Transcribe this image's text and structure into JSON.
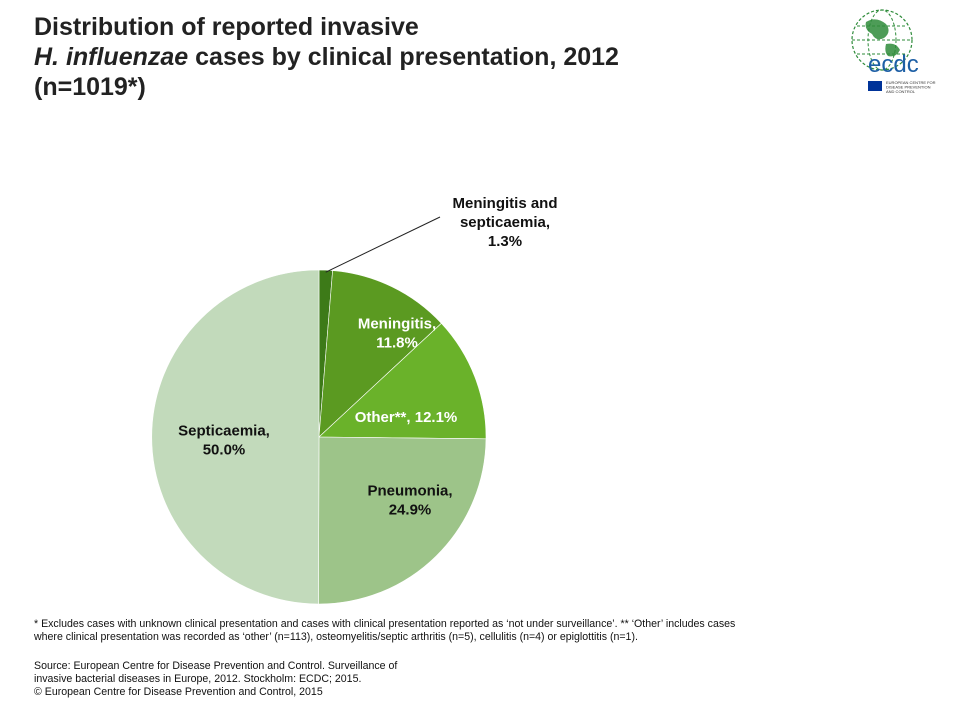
{
  "title": {
    "line1": "Distribution of reported invasive",
    "line2_italic": "H. influenzae",
    "line2_rest": " cases by clinical presentation, 2012",
    "line3": "(n=1019*)"
  },
  "logo": {
    "text": "ecdc",
    "subtitle_lines": [
      "EUROPEAN CENTRE FOR",
      "DISEASE PREVENTION",
      "AND CONTROL"
    ],
    "icon": "globe-icon",
    "colors": {
      "globe": "#2e8b3a",
      "text": "#1d5fa5",
      "flag": "#003399"
    }
  },
  "chart_data": {
    "type": "pie",
    "slices": [
      {
        "label": "Meningitis and septicaemia",
        "value": 1.3,
        "display": [
          "Meningitis and",
          "septicaemia,",
          "1.3%"
        ],
        "color": "#3d7a18",
        "label_color": "#111111"
      },
      {
        "label": "Meningitis",
        "value": 11.8,
        "display": [
          "Meningitis,",
          "11.8%"
        ],
        "color": "#5b9a21",
        "label_color": "#ffffff"
      },
      {
        "label": "Other**",
        "value": 12.1,
        "display": [
          "Other**, 12.1%"
        ],
        "color": "#6ab22a",
        "label_color": "#ffffff"
      },
      {
        "label": "Pneumonia",
        "value": 24.9,
        "display": [
          "Pneumonia,",
          "24.9%"
        ],
        "color": "#9dc489",
        "label_color": "#111111"
      },
      {
        "label": "Septicaemia",
        "value": 50.0,
        "display": [
          "Septicaemia,",
          "50.0%"
        ],
        "color": "#c2dabb",
        "label_color": "#111111"
      }
    ]
  },
  "footnote": {
    "line1": "* Excludes cases with unknown clinical presentation and cases with clinical presentation reported as ‘not under surveillance’. ** ‘Other’ includes cases",
    "line2": "where clinical presentation was recorded as ‘other’ (n=113), osteomyelitis/septic arthritis (n=5), cellulitis (n=4) or epiglottitis (n=1)."
  },
  "source": {
    "line1": "Source: European Centre for Disease Prevention and Control. Surveillance of",
    "line2": "invasive bacterial diseases in Europe, 2012. Stockholm: ECDC; 2015.",
    "line3": "© European Centre for Disease Prevention and Control, 2015"
  }
}
